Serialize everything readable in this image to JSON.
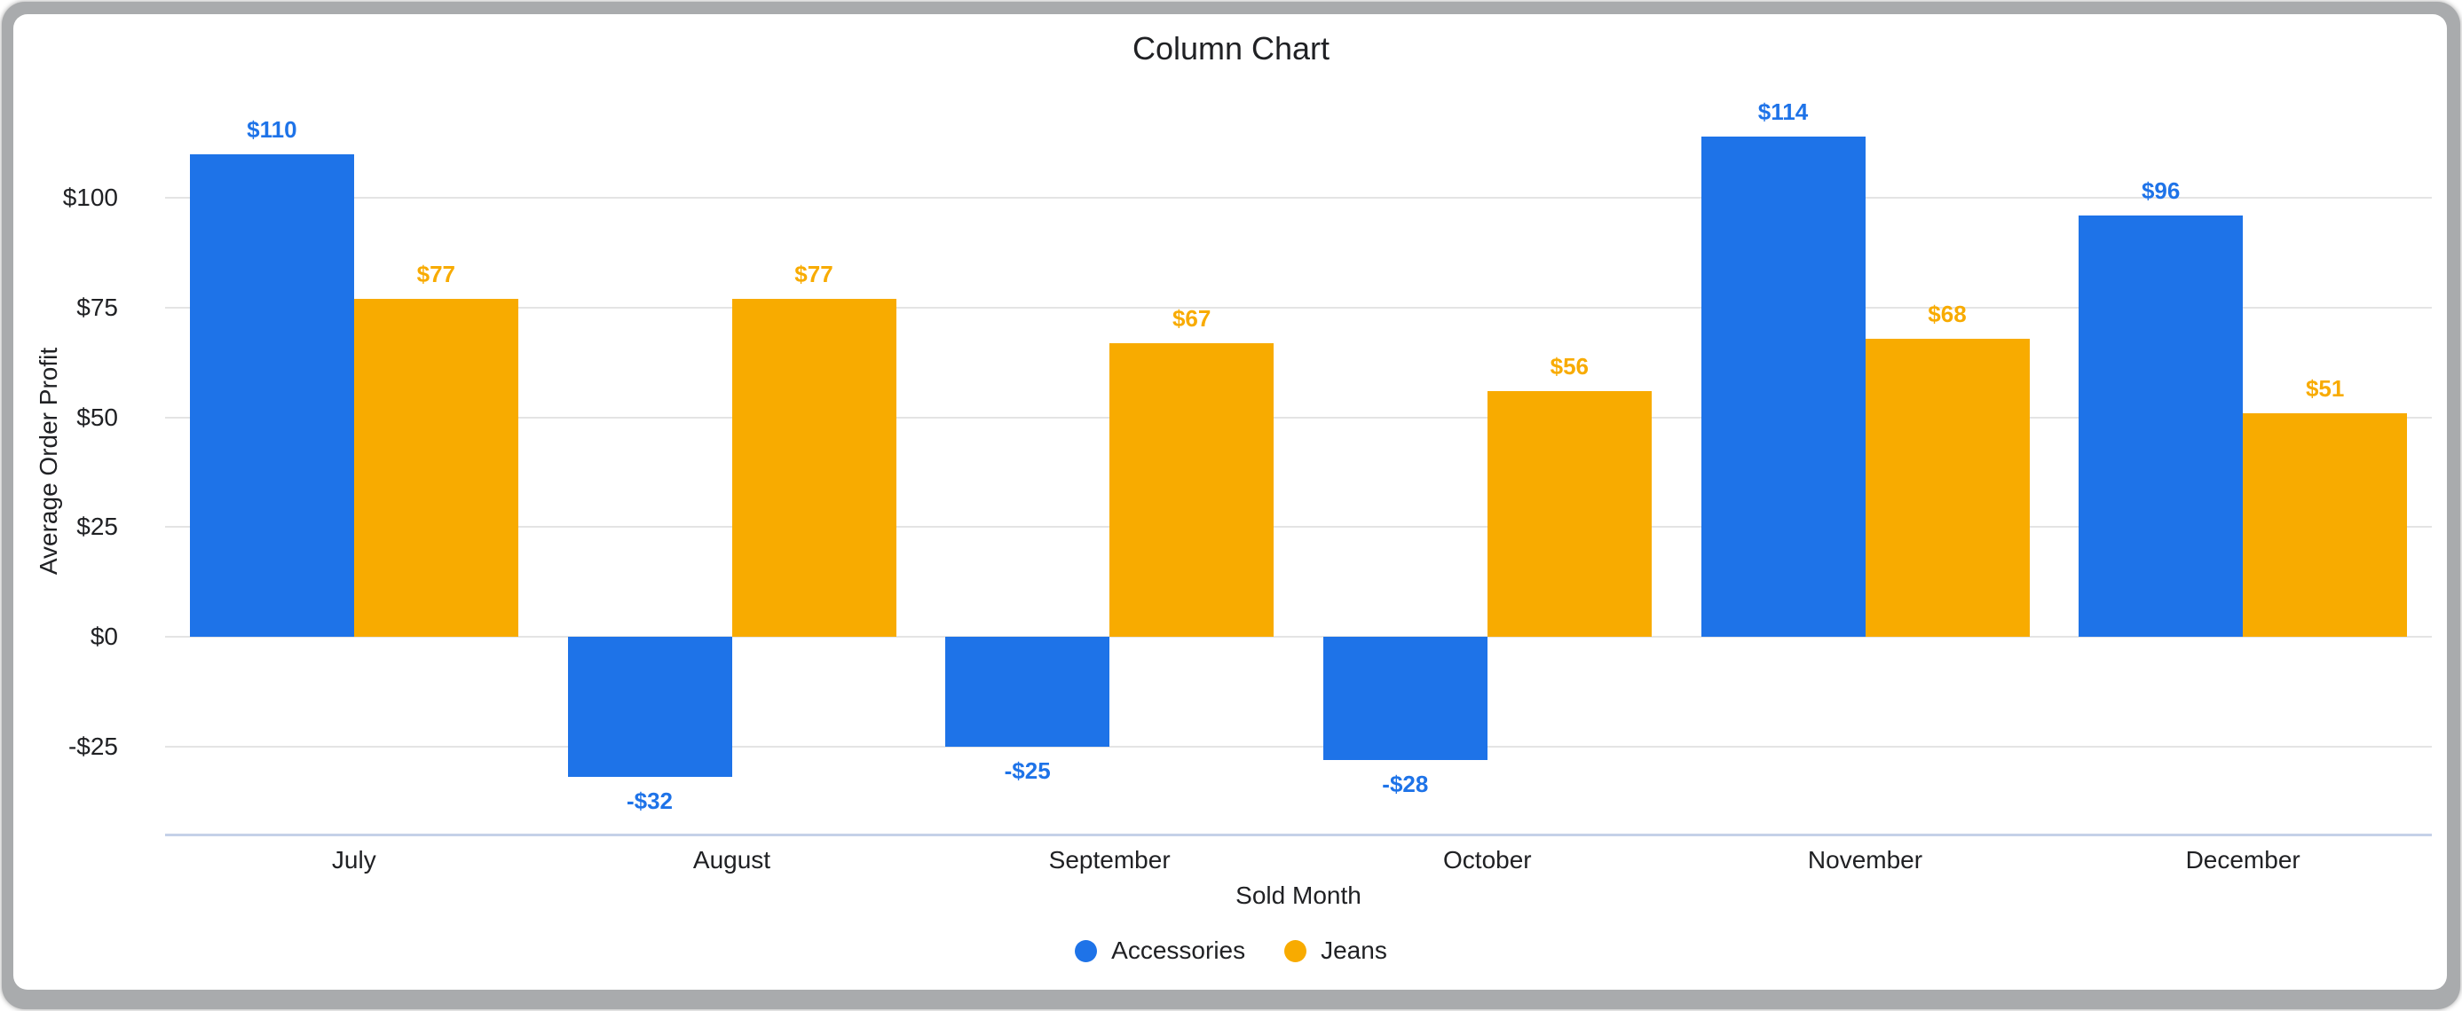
{
  "window": {
    "frame_color": "#a9abad",
    "card_color": "#ffffff"
  },
  "chart_data": {
    "type": "bar",
    "title": "Column Chart",
    "xlabel": "Sold Month",
    "ylabel": "Average Order Profit",
    "categories": [
      "July",
      "August",
      "September",
      "October",
      "November",
      "December"
    ],
    "series": [
      {
        "name": "Accessories",
        "color": "#1e73e8",
        "values": [
          110,
          -32,
          -25,
          -28,
          114,
          96
        ],
        "data_labels": [
          "$110",
          "-$32",
          "-$25",
          "-$28",
          "$114",
          "$96"
        ]
      },
      {
        "name": "Jeans",
        "color": "#f8ab00",
        "values": [
          77,
          77,
          67,
          56,
          68,
          51
        ],
        "data_labels": [
          "$77",
          "$77",
          "$67",
          "$56",
          "$68",
          "$51"
        ]
      }
    ],
    "y_ticks": [
      {
        "label": "$100",
        "value": 100
      },
      {
        "label": "$75",
        "value": 75
      },
      {
        "label": "$50",
        "value": 50
      },
      {
        "label": "$25",
        "value": 25
      },
      {
        "label": "$0",
        "value": 0
      },
      {
        "label": "-$25",
        "value": -25
      }
    ],
    "ylim": [
      -45,
      125
    ],
    "grid": true,
    "legend_position": "bottom",
    "gridline_color": "#e4e4e4",
    "baseline_color": "#c5d1e8",
    "text_color": "#202124"
  }
}
